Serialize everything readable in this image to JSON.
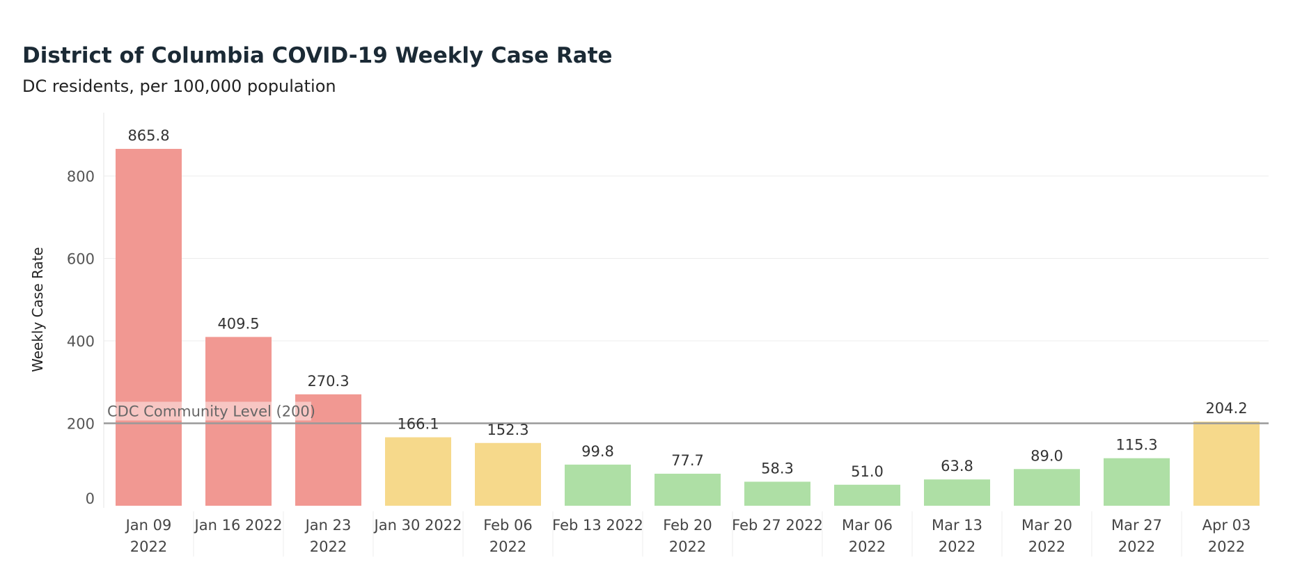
{
  "chart_data": {
    "type": "bar",
    "title": "District of Columbia COVID-19 Weekly Case Rate",
    "subtitle": "DC residents, per 100,000 population",
    "xlabel": "",
    "ylabel": "Weekly Case Rate",
    "ylim": [
      0,
      960
    ],
    "yticks": [
      0,
      200,
      400,
      600,
      800
    ],
    "grid": "horizontal",
    "categories": [
      [
        "Jan 09",
        "2022"
      ],
      [
        "Jan 16 2022"
      ],
      [
        "Jan 23",
        "2022"
      ],
      [
        "Jan 30 2022"
      ],
      [
        "Feb 06",
        "2022"
      ],
      [
        "Feb 13 2022"
      ],
      [
        "Feb 20",
        "2022"
      ],
      [
        "Feb 27 2022"
      ],
      [
        "Mar 06",
        "2022"
      ],
      [
        "Mar 13",
        "2022"
      ],
      [
        "Mar 20",
        "2022"
      ],
      [
        "Mar 27",
        "2022"
      ],
      [
        "Apr 03",
        "2022"
      ]
    ],
    "values": [
      865.8,
      409.5,
      270.3,
      166.1,
      152.3,
      99.8,
      77.7,
      58.3,
      51.0,
      63.8,
      89.0,
      115.3,
      204.2
    ],
    "value_labels": [
      "865.8",
      "409.5",
      "270.3",
      "166.1",
      "152.3",
      "99.8",
      "77.7",
      "58.3",
      "51.0",
      "63.8",
      "89.0",
      "115.3",
      "204.2"
    ],
    "levels": [
      "high",
      "high",
      "high",
      "medium",
      "medium",
      "low",
      "low",
      "low",
      "low",
      "low",
      "low",
      "low",
      "medium"
    ],
    "level_colors": {
      "high": "#f19892",
      "medium": "#f6d98b",
      "low": "#aedfa5"
    },
    "reference_line": {
      "value": 200,
      "label": "CDC Community Level (200)",
      "color": "#999999"
    }
  }
}
